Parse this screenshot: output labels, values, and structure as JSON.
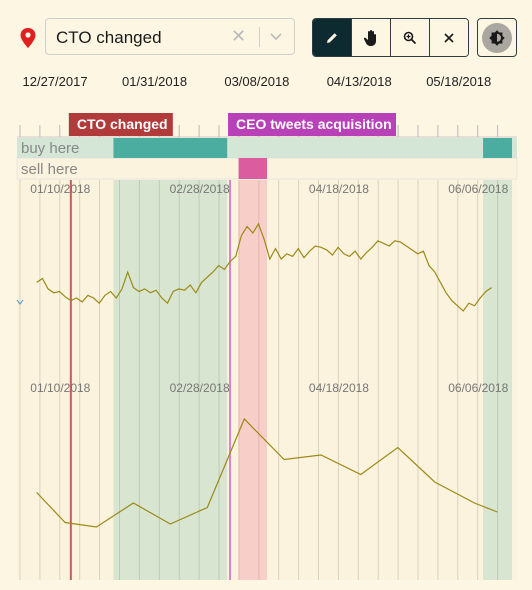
{
  "toolbar": {
    "annotation_select": {
      "value": "CTO changed",
      "clear_icon": "clear-x-icon",
      "chevron_icon": "chevron-down-icon"
    },
    "tools": [
      {
        "name": "draw-tool",
        "icon": "pencil-icon",
        "active": true
      },
      {
        "name": "pan-tool",
        "icon": "hand-icon",
        "active": false
      },
      {
        "name": "zoom-tool",
        "icon": "zoom-in-icon",
        "active": false
      },
      {
        "name": "clear-tool",
        "icon": "close-icon",
        "active": false
      }
    ],
    "theme_icon": "theme-toggle-icon",
    "location_icon": "map-pin-icon"
  },
  "colors": {
    "background": "#fdf6e3",
    "cto_event": "#b13a3a",
    "ceo_event": "#b841b8",
    "buy_band": "#4aada0",
    "sell_band": "#db5c9f",
    "line": "#9c8a16",
    "active_tool": "#0e2a31"
  },
  "chart_data": {
    "type": "line",
    "top_axis_ticks": [
      "12/27/2017",
      "01/31/2018",
      "03/08/2018",
      "04/13/2018",
      "05/18/2018"
    ],
    "inner_axis_ticks": [
      "01/10/2018",
      "02/28/2018",
      "04/18/2018",
      "06/06/2018"
    ],
    "events": [
      {
        "label": "CTO changed",
        "date": "2018-01-13"
      },
      {
        "label": "CEO tweets acquisition",
        "date": "2018-03-10"
      }
    ],
    "bands": [
      {
        "label": "buy here",
        "ranges": [
          [
            "2018-01-28",
            "2018-03-09"
          ],
          [
            "2018-06-07",
            "2018-06-19"
          ]
        ]
      },
      {
        "label": "sell here",
        "ranges": [
          [
            "2018-03-13",
            "2018-03-23"
          ]
        ]
      }
    ],
    "series": [
      {
        "values": [
          [
            "2018-01-01",
            0.52
          ],
          [
            "2018-01-03",
            0.55
          ],
          [
            "2018-01-05",
            0.47
          ],
          [
            "2018-01-07",
            0.44
          ],
          [
            "2018-01-09",
            0.45
          ],
          [
            "2018-01-11",
            0.41
          ],
          [
            "2018-01-13",
            0.38
          ],
          [
            "2018-01-15",
            0.4
          ],
          [
            "2018-01-17",
            0.37
          ],
          [
            "2018-01-19",
            0.42
          ],
          [
            "2018-01-21",
            0.4
          ],
          [
            "2018-01-23",
            0.36
          ],
          [
            "2018-01-25",
            0.42
          ],
          [
            "2018-01-27",
            0.45
          ],
          [
            "2018-01-29",
            0.4
          ],
          [
            "2018-01-31",
            0.47
          ],
          [
            "2018-02-02",
            0.6
          ],
          [
            "2018-02-04",
            0.48
          ],
          [
            "2018-02-06",
            0.45
          ],
          [
            "2018-02-08",
            0.47
          ],
          [
            "2018-02-10",
            0.44
          ],
          [
            "2018-02-12",
            0.46
          ],
          [
            "2018-02-14",
            0.4
          ],
          [
            "2018-02-16",
            0.36
          ],
          [
            "2018-02-18",
            0.45
          ],
          [
            "2018-02-20",
            0.47
          ],
          [
            "2018-02-22",
            0.46
          ],
          [
            "2018-02-24",
            0.5
          ],
          [
            "2018-02-26",
            0.44
          ],
          [
            "2018-02-28",
            0.52
          ],
          [
            "2018-03-02",
            0.56
          ],
          [
            "2018-03-04",
            0.6
          ],
          [
            "2018-03-06",
            0.65
          ],
          [
            "2018-03-08",
            0.62
          ],
          [
            "2018-03-10",
            0.68
          ],
          [
            "2018-03-12",
            0.72
          ],
          [
            "2018-03-14",
            0.88
          ],
          [
            "2018-03-16",
            0.95
          ],
          [
            "2018-03-18",
            0.9
          ],
          [
            "2018-03-20",
            0.97
          ],
          [
            "2018-03-22",
            0.85
          ],
          [
            "2018-03-24",
            0.7
          ],
          [
            "2018-03-26",
            0.78
          ],
          [
            "2018-03-28",
            0.7
          ],
          [
            "2018-03-30",
            0.74
          ],
          [
            "2018-04-01",
            0.72
          ],
          [
            "2018-04-03",
            0.78
          ],
          [
            "2018-04-05",
            0.71
          ],
          [
            "2018-04-07",
            0.76
          ],
          [
            "2018-04-09",
            0.8
          ],
          [
            "2018-04-11",
            0.79
          ],
          [
            "2018-04-13",
            0.77
          ],
          [
            "2018-04-15",
            0.73
          ],
          [
            "2018-04-17",
            0.79
          ],
          [
            "2018-04-19",
            0.74
          ],
          [
            "2018-04-21",
            0.72
          ],
          [
            "2018-04-23",
            0.76
          ],
          [
            "2018-04-25",
            0.7
          ],
          [
            "2018-04-27",
            0.75
          ],
          [
            "2018-04-29",
            0.79
          ],
          [
            "2018-05-01",
            0.84
          ],
          [
            "2018-05-03",
            0.82
          ],
          [
            "2018-05-05",
            0.8
          ],
          [
            "2018-05-07",
            0.84
          ],
          [
            "2018-05-09",
            0.83
          ],
          [
            "2018-05-11",
            0.8
          ],
          [
            "2018-05-13",
            0.77
          ],
          [
            "2018-05-15",
            0.74
          ],
          [
            "2018-05-17",
            0.76
          ],
          [
            "2018-05-19",
            0.65
          ],
          [
            "2018-05-21",
            0.6
          ],
          [
            "2018-05-23",
            0.52
          ],
          [
            "2018-05-25",
            0.44
          ],
          [
            "2018-05-27",
            0.38
          ],
          [
            "2018-05-29",
            0.34
          ],
          [
            "2018-05-31",
            0.3
          ],
          [
            "2018-06-02",
            0.36
          ],
          [
            "2018-06-04",
            0.34
          ],
          [
            "2018-06-06",
            0.4
          ],
          [
            "2018-06-08",
            0.45
          ],
          [
            "2018-06-10",
            0.48
          ]
        ]
      },
      {
        "values": [
          [
            "2018-01-01",
            0.45
          ],
          [
            "2018-01-11",
            0.25
          ],
          [
            "2018-01-22",
            0.22
          ],
          [
            "2018-02-04",
            0.38
          ],
          [
            "2018-02-17",
            0.24
          ],
          [
            "2018-03-02",
            0.35
          ],
          [
            "2018-03-15",
            0.94
          ],
          [
            "2018-03-29",
            0.67
          ],
          [
            "2018-04-11",
            0.7
          ],
          [
            "2018-04-25",
            0.57
          ],
          [
            "2018-05-08",
            0.75
          ],
          [
            "2018-05-21",
            0.52
          ],
          [
            "2018-06-04",
            0.38
          ],
          [
            "2018-06-12",
            0.32
          ]
        ]
      }
    ],
    "grid": true
  }
}
